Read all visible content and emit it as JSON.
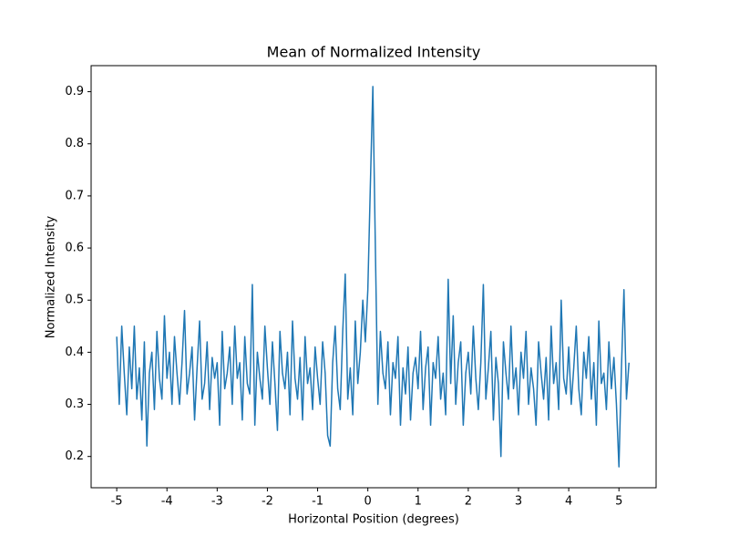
{
  "chart_data": {
    "type": "line",
    "title": "Mean of Normalized Intensity",
    "xlabel": "Horizontal Position (degrees)",
    "ylabel": "Normalized Intensity",
    "color": "#1f77b4",
    "xlim": [
      -5.51,
      5.74
    ],
    "ylim": [
      0.14,
      0.95
    ],
    "xticks": [
      -5,
      -4,
      -3,
      -2,
      -1,
      0,
      1,
      2,
      3,
      4,
      5
    ],
    "yticks": [
      0.2,
      0.3,
      0.4,
      0.5,
      0.6,
      0.7,
      0.8,
      0.9
    ],
    "x": [
      -5.0,
      -4.95,
      -4.9,
      -4.85,
      -4.8,
      -4.75,
      -4.7,
      -4.65,
      -4.6,
      -4.55,
      -4.5,
      -4.45,
      -4.4,
      -4.35,
      -4.3,
      -4.25,
      -4.2,
      -4.15,
      -4.1,
      -4.05,
      -4.0,
      -3.95,
      -3.9,
      -3.85,
      -3.8,
      -3.75,
      -3.7,
      -3.65,
      -3.6,
      -3.55,
      -3.5,
      -3.45,
      -3.4,
      -3.35,
      -3.3,
      -3.25,
      -3.2,
      -3.15,
      -3.1,
      -3.05,
      -3.0,
      -2.95,
      -2.9,
      -2.85,
      -2.8,
      -2.75,
      -2.7,
      -2.65,
      -2.6,
      -2.55,
      -2.5,
      -2.45,
      -2.4,
      -2.35,
      -2.3,
      -2.25,
      -2.2,
      -2.15,
      -2.1,
      -2.05,
      -2.0,
      -1.95,
      -1.9,
      -1.85,
      -1.8,
      -1.75,
      -1.7,
      -1.65,
      -1.6,
      -1.55,
      -1.5,
      -1.45,
      -1.4,
      -1.35,
      -1.3,
      -1.25,
      -1.2,
      -1.15,
      -1.1,
      -1.05,
      -1.0,
      -0.95,
      -0.9,
      -0.85,
      -0.8,
      -0.75,
      -0.7,
      -0.65,
      -0.6,
      -0.55,
      -0.5,
      -0.45,
      -0.4,
      -0.35,
      -0.3,
      -0.25,
      -0.2,
      -0.15,
      -0.1,
      -0.05,
      0.0,
      0.05,
      0.1,
      0.15,
      0.2,
      0.25,
      0.3,
      0.35,
      0.4,
      0.45,
      0.5,
      0.55,
      0.6,
      0.65,
      0.7,
      0.75,
      0.8,
      0.85,
      0.9,
      0.95,
      1.0,
      1.05,
      1.1,
      1.15,
      1.2,
      1.25,
      1.3,
      1.35,
      1.4,
      1.45,
      1.5,
      1.55,
      1.6,
      1.65,
      1.7,
      1.75,
      1.8,
      1.85,
      1.9,
      1.95,
      2.0,
      2.05,
      2.1,
      2.15,
      2.2,
      2.25,
      2.3,
      2.35,
      2.4,
      2.45,
      2.5,
      2.55,
      2.6,
      2.65,
      2.7,
      2.75,
      2.8,
      2.85,
      2.9,
      2.95,
      3.0,
      3.05,
      3.1,
      3.15,
      3.2,
      3.25,
      3.3,
      3.35,
      3.4,
      3.45,
      3.5,
      3.55,
      3.6,
      3.65,
      3.7,
      3.75,
      3.8,
      3.85,
      3.9,
      3.95,
      4.0,
      4.05,
      4.1,
      4.15,
      4.2,
      4.25,
      4.3,
      4.35,
      4.4,
      4.45,
      4.5,
      4.55,
      4.6,
      4.65,
      4.7,
      4.75,
      4.8,
      4.85,
      4.9,
      4.95,
      5.0,
      5.05,
      5.1,
      5.15,
      5.2
    ],
    "values": [
      0.43,
      0.3,
      0.45,
      0.36,
      0.28,
      0.41,
      0.33,
      0.45,
      0.31,
      0.37,
      0.27,
      0.42,
      0.22,
      0.36,
      0.4,
      0.29,
      0.44,
      0.35,
      0.31,
      0.47,
      0.35,
      0.4,
      0.3,
      0.43,
      0.36,
      0.3,
      0.38,
      0.48,
      0.32,
      0.36,
      0.41,
      0.27,
      0.37,
      0.46,
      0.31,
      0.34,
      0.42,
      0.29,
      0.39,
      0.35,
      0.38,
      0.26,
      0.44,
      0.33,
      0.36,
      0.41,
      0.3,
      0.45,
      0.35,
      0.38,
      0.27,
      0.43,
      0.34,
      0.32,
      0.53,
      0.26,
      0.4,
      0.35,
      0.31,
      0.45,
      0.37,
      0.3,
      0.42,
      0.34,
      0.25,
      0.44,
      0.36,
      0.33,
      0.4,
      0.28,
      0.46,
      0.35,
      0.31,
      0.39,
      0.27,
      0.43,
      0.34,
      0.37,
      0.29,
      0.41,
      0.35,
      0.3,
      0.42,
      0.36,
      0.24,
      0.22,
      0.38,
      0.45,
      0.33,
      0.29,
      0.44,
      0.55,
      0.31,
      0.37,
      0.28,
      0.46,
      0.34,
      0.4,
      0.5,
      0.42,
      0.52,
      0.72,
      0.91,
      0.6,
      0.3,
      0.44,
      0.36,
      0.33,
      0.42,
      0.28,
      0.38,
      0.35,
      0.43,
      0.26,
      0.37,
      0.32,
      0.41,
      0.27,
      0.36,
      0.39,
      0.33,
      0.44,
      0.29,
      0.37,
      0.41,
      0.26,
      0.38,
      0.35,
      0.43,
      0.31,
      0.36,
      0.28,
      0.54,
      0.34,
      0.47,
      0.3,
      0.38,
      0.42,
      0.26,
      0.36,
      0.4,
      0.32,
      0.45,
      0.35,
      0.29,
      0.38,
      0.53,
      0.31,
      0.37,
      0.44,
      0.27,
      0.39,
      0.34,
      0.2,
      0.42,
      0.36,
      0.31,
      0.45,
      0.33,
      0.37,
      0.28,
      0.4,
      0.35,
      0.44,
      0.3,
      0.37,
      0.33,
      0.26,
      0.42,
      0.36,
      0.31,
      0.39,
      0.27,
      0.45,
      0.34,
      0.38,
      0.29,
      0.5,
      0.35,
      0.32,
      0.41,
      0.3,
      0.37,
      0.45,
      0.33,
      0.28,
      0.4,
      0.35,
      0.43,
      0.31,
      0.38,
      0.26,
      0.46,
      0.34,
      0.36,
      0.29,
      0.42,
      0.33,
      0.39,
      0.3,
      0.18,
      0.37,
      0.52,
      0.31,
      0.38
    ]
  }
}
